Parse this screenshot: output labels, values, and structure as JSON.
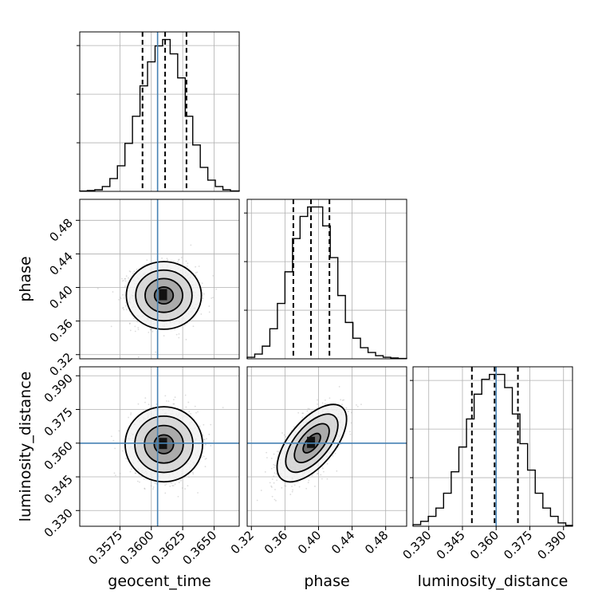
{
  "chart_data": {
    "type": "corner",
    "parameters": [
      "geocent_time",
      "phase",
      "luminosity_distance"
    ],
    "axis_labels": {
      "geocent_time": "geocent_time",
      "phase": "phase",
      "luminosity_distance": "luminosity_distance"
    },
    "ranges": {
      "geocent_time": [
        0.3543,
        0.367
      ],
      "phase": [
        0.315,
        0.505
      ],
      "luminosity_distance": [
        0.323,
        0.394
      ]
    },
    "ticks": {
      "geocent_time": [
        0.3575,
        0.36,
        0.3625,
        0.365
      ],
      "phase": [
        0.32,
        0.36,
        0.4,
        0.44,
        0.48
      ],
      "luminosity_distance": [
        0.33,
        0.345,
        0.36,
        0.375,
        0.39
      ]
    },
    "tick_labels": {
      "geocent_time": [
        "0.3575",
        "0.3600",
        "0.3625",
        "0.3650"
      ],
      "phase": [
        "0.32",
        "0.36",
        "0.40",
        "0.44",
        "0.48"
      ],
      "luminosity_distance": [
        "0.330",
        "0.345",
        "0.360",
        "0.375",
        "0.390"
      ]
    },
    "truths": {
      "geocent_time": 0.3605,
      "phase": null,
      "luminosity_distance": 0.36
    },
    "quantiles": {
      "geocent_time": [
        0.3593,
        0.3611,
        0.3628
      ],
      "phase": [
        0.37,
        0.391,
        0.413
      ],
      "luminosity_distance": [
        0.3492,
        0.3593,
        0.3697
      ]
    },
    "histograms": {
      "geocent_time": {
        "edges": [
          0.3543,
          0.3549,
          0.3555,
          0.3561,
          0.3567,
          0.3573,
          0.3579,
          0.3585,
          0.3591,
          0.3597,
          0.3603,
          0.3609,
          0.3615,
          0.3621,
          0.3627,
          0.3633,
          0.3639,
          0.3645,
          0.3651,
          0.3657,
          0.3663,
          0.367
        ],
        "counts": [
          0.2,
          0.5,
          1.0,
          3.0,
          8.0,
          16.0,
          30.0,
          47.0,
          66.0,
          81.0,
          91.0,
          95.0,
          86.0,
          71.0,
          47.0,
          29.0,
          15.0,
          7.0,
          3.0,
          1.0,
          0.3
        ]
      },
      "phase": {
        "edges": [
          0.315,
          0.324,
          0.333,
          0.342,
          0.351,
          0.36,
          0.369,
          0.378,
          0.387,
          0.396,
          0.405,
          0.414,
          0.423,
          0.432,
          0.441,
          0.45,
          0.459,
          0.468,
          0.477,
          0.486,
          0.495,
          0.505
        ],
        "counts": [
          1.0,
          3.0,
          8.0,
          19.0,
          35.0,
          55.0,
          76.0,
          90.0,
          96.0,
          96.0,
          84.0,
          64.0,
          40.0,
          23.0,
          13.0,
          7.0,
          4.0,
          2.0,
          1.0,
          0.5,
          0.2
        ]
      },
      "luminosity_distance": {
        "edges": [
          0.323,
          0.3264,
          0.3298,
          0.3332,
          0.3366,
          0.34,
          0.3434,
          0.3468,
          0.3502,
          0.3536,
          0.357,
          0.3604,
          0.3638,
          0.3672,
          0.3706,
          0.374,
          0.3774,
          0.3808,
          0.3842,
          0.3876,
          0.391,
          0.394
        ],
        "counts": [
          1.0,
          3.0,
          6.0,
          11.0,
          20.0,
          33.0,
          48.0,
          65.0,
          80.0,
          89.0,
          92.0,
          92.0,
          84.0,
          68.0,
          50.0,
          34.0,
          20.0,
          11.0,
          6.0,
          2.0,
          0.5
        ]
      }
    },
    "joint": [
      {
        "x": "geocent_time",
        "y": "phase",
        "x_center": 0.361,
        "y_center": 0.3905,
        "sigma_x": 0.0013,
        "sigma_y": 0.0175,
        "rho": 0.0
      },
      {
        "x": "geocent_time",
        "y": "luminosity_distance",
        "x_center": 0.361,
        "y_center": 0.3595,
        "sigma_x": 0.0013,
        "sigma_y": 0.0075,
        "rho": 0.0
      },
      {
        "x": "phase",
        "y": "luminosity_distance",
        "x_center": 0.392,
        "y_center": 0.36,
        "sigma_x": 0.018,
        "sigma_y": 0.0075,
        "rho": 0.62
      }
    ],
    "contour_levels_sigma": [
      0.5,
      1.0,
      1.5,
      2.0
    ],
    "grid": true
  }
}
